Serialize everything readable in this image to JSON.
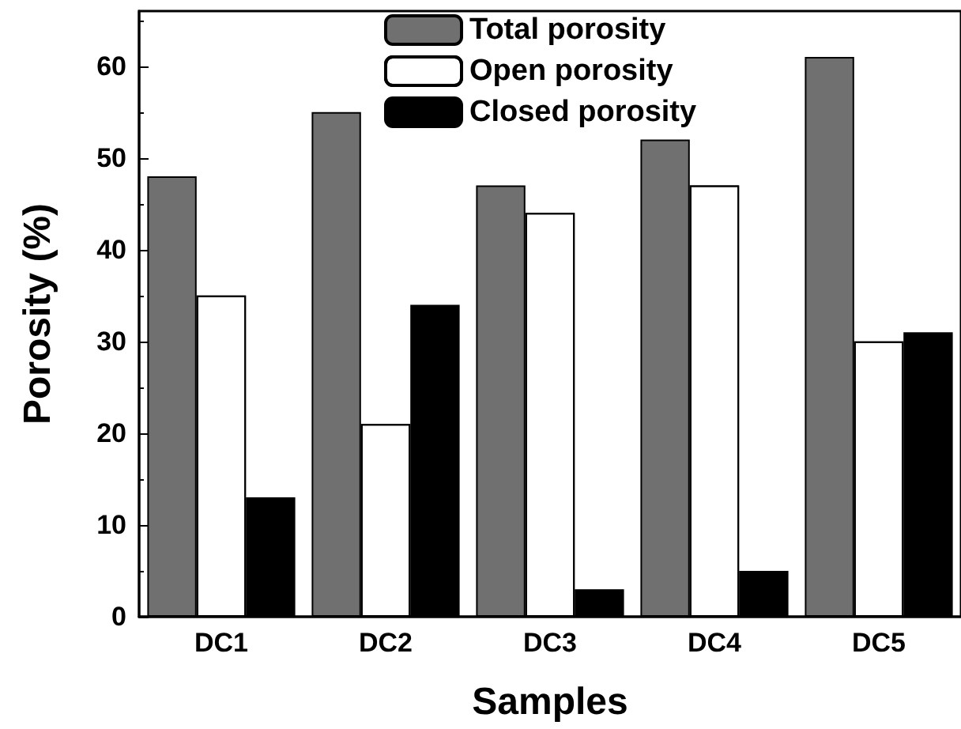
{
  "chart_data": {
    "type": "bar",
    "xlabel": "Samples",
    "ylabel": "Porosity (%)",
    "categories": [
      "DC1",
      "DC2",
      "DC3",
      "DC4",
      "DC5"
    ],
    "series": [
      {
        "name": "Total porosity",
        "color": "#707070",
        "values": [
          48,
          55,
          47,
          52,
          61
        ]
      },
      {
        "name": "Open porosity",
        "color": "#ffffff",
        "values": [
          35,
          21,
          44,
          47,
          30
        ]
      },
      {
        "name": "Closed porosity",
        "color": "#000000",
        "values": [
          13,
          34,
          3,
          5,
          31
        ]
      }
    ],
    "ylim": [
      0,
      66
    ],
    "yticks": [
      0,
      10,
      20,
      30,
      40,
      50,
      60
    ],
    "grid": false,
    "legend": "top"
  }
}
